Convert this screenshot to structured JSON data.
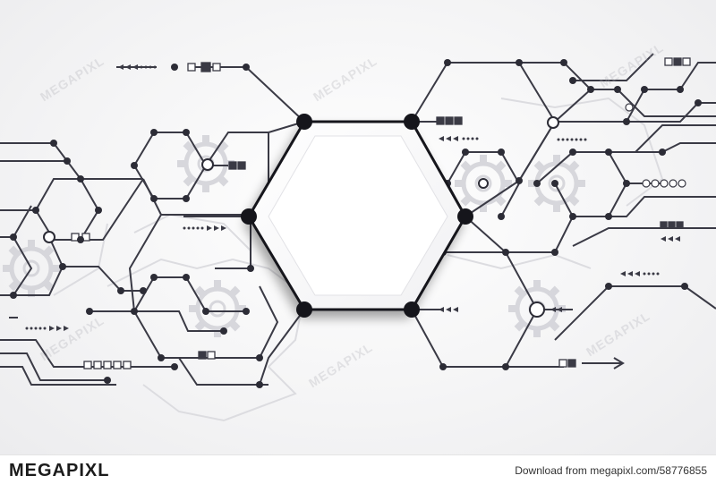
{
  "image": {
    "description_colors": {
      "line": "#3a3a45",
      "node": "#2c2c36",
      "gear": "#cfcfd4",
      "background": "#f4f4f5",
      "hexagon_fill": "#ffffff"
    }
  },
  "watermark": {
    "text": "MEGAPIXL"
  },
  "footer": {
    "brand": "MEGAPIXL",
    "download_text": "Download from megapixl.com/58776855"
  }
}
